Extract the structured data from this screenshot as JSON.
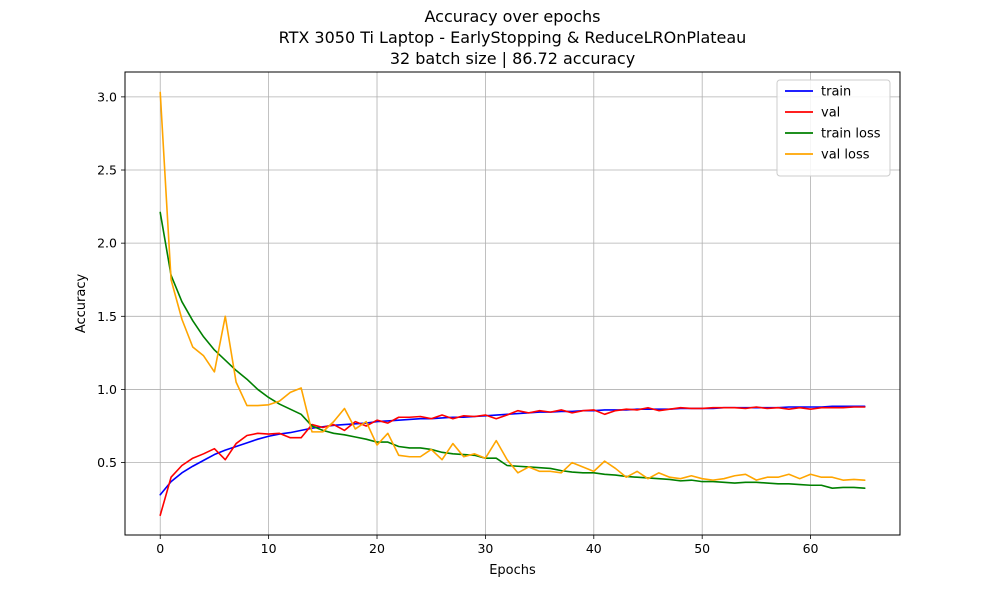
{
  "chart_data": {
    "type": "line",
    "title_lines": [
      "Accuracy over epochs",
      "RTX 3050 Ti Laptop - EarlyStopping & ReduceLROnPlateau",
      "32 batch size | 86.72 accuracy"
    ],
    "xlabel": "Epochs",
    "ylabel": "Accuracy",
    "xlim": [
      -3.25,
      68.25
    ],
    "ylim": [
      0.005,
      3.17
    ],
    "xticks": [
      0,
      10,
      20,
      30,
      40,
      50,
      60
    ],
    "xtick_labels": [
      "0",
      "10",
      "20",
      "30",
      "40",
      "50",
      "60"
    ],
    "yticks": [
      0.5,
      1.0,
      1.5,
      2.0,
      2.5,
      3.0
    ],
    "ytick_labels": [
      "0.5",
      "1.0",
      "1.5",
      "2.0",
      "2.5",
      "3.0"
    ],
    "grid": true,
    "legend_position": "upper right",
    "x": [
      0,
      1,
      2,
      3,
      4,
      5,
      6,
      7,
      8,
      9,
      10,
      11,
      12,
      13,
      14,
      15,
      16,
      17,
      18,
      19,
      20,
      21,
      22,
      23,
      24,
      25,
      26,
      27,
      28,
      29,
      30,
      31,
      32,
      33,
      34,
      35,
      36,
      37,
      38,
      39,
      40,
      41,
      42,
      43,
      44,
      45,
      46,
      47,
      48,
      49,
      50,
      51,
      52,
      53,
      54,
      55,
      56,
      57,
      58,
      59,
      60,
      61,
      62,
      63,
      64,
      65
    ],
    "series": [
      {
        "name": "train",
        "color": "#0000ff",
        "values": [
          0.28,
          0.37,
          0.43,
          0.475,
          0.515,
          0.555,
          0.585,
          0.61,
          0.635,
          0.66,
          0.68,
          0.695,
          0.705,
          0.72,
          0.735,
          0.745,
          0.755,
          0.76,
          0.765,
          0.77,
          0.78,
          0.785,
          0.79,
          0.795,
          0.8,
          0.8,
          0.805,
          0.81,
          0.81,
          0.815,
          0.82,
          0.825,
          0.83,
          0.835,
          0.84,
          0.845,
          0.845,
          0.85,
          0.85,
          0.855,
          0.855,
          0.86,
          0.86,
          0.86,
          0.865,
          0.865,
          0.865,
          0.865,
          0.87,
          0.87,
          0.87,
          0.87,
          0.875,
          0.875,
          0.875,
          0.875,
          0.875,
          0.875,
          0.88,
          0.88,
          0.88,
          0.88,
          0.885,
          0.885,
          0.885,
          0.885
        ]
      },
      {
        "name": "val",
        "color": "#ff0000",
        "values": [
          0.14,
          0.4,
          0.48,
          0.53,
          0.56,
          0.595,
          0.52,
          0.63,
          0.685,
          0.7,
          0.695,
          0.7,
          0.67,
          0.67,
          0.76,
          0.74,
          0.76,
          0.72,
          0.78,
          0.75,
          0.79,
          0.77,
          0.81,
          0.81,
          0.815,
          0.8,
          0.825,
          0.8,
          0.82,
          0.815,
          0.825,
          0.8,
          0.825,
          0.855,
          0.84,
          0.855,
          0.845,
          0.86,
          0.84,
          0.855,
          0.86,
          0.83,
          0.855,
          0.865,
          0.86,
          0.875,
          0.855,
          0.865,
          0.875,
          0.87,
          0.87,
          0.875,
          0.875,
          0.875,
          0.87,
          0.88,
          0.87,
          0.875,
          0.865,
          0.875,
          0.865,
          0.875,
          0.875,
          0.875,
          0.88,
          0.88
        ]
      },
      {
        "name": "train loss",
        "color": "#008000",
        "values": [
          2.21,
          1.78,
          1.6,
          1.47,
          1.36,
          1.27,
          1.2,
          1.13,
          1.07,
          1.0,
          0.945,
          0.9,
          0.865,
          0.83,
          0.75,
          0.72,
          0.7,
          0.69,
          0.675,
          0.66,
          0.64,
          0.64,
          0.61,
          0.6,
          0.6,
          0.59,
          0.57,
          0.56,
          0.555,
          0.55,
          0.53,
          0.53,
          0.48,
          0.475,
          0.47,
          0.465,
          0.46,
          0.445,
          0.435,
          0.43,
          0.43,
          0.42,
          0.415,
          0.405,
          0.4,
          0.395,
          0.39,
          0.385,
          0.375,
          0.38,
          0.37,
          0.37,
          0.365,
          0.36,
          0.365,
          0.365,
          0.36,
          0.355,
          0.355,
          0.35,
          0.345,
          0.345,
          0.325,
          0.33,
          0.33,
          0.325
        ]
      },
      {
        "name": "val loss",
        "color": "#ffa500",
        "values": [
          3.03,
          1.75,
          1.48,
          1.29,
          1.23,
          1.12,
          1.5,
          1.05,
          0.89,
          0.89,
          0.895,
          0.92,
          0.98,
          1.01,
          0.71,
          0.71,
          0.78,
          0.87,
          0.73,
          0.78,
          0.62,
          0.7,
          0.55,
          0.54,
          0.54,
          0.59,
          0.52,
          0.63,
          0.54,
          0.56,
          0.53,
          0.65,
          0.52,
          0.43,
          0.47,
          0.44,
          0.44,
          0.43,
          0.5,
          0.47,
          0.44,
          0.51,
          0.46,
          0.4,
          0.44,
          0.39,
          0.43,
          0.4,
          0.39,
          0.41,
          0.39,
          0.38,
          0.39,
          0.41,
          0.42,
          0.38,
          0.4,
          0.4,
          0.42,
          0.39,
          0.42,
          0.4,
          0.4,
          0.38,
          0.385,
          0.38
        ]
      }
    ]
  }
}
